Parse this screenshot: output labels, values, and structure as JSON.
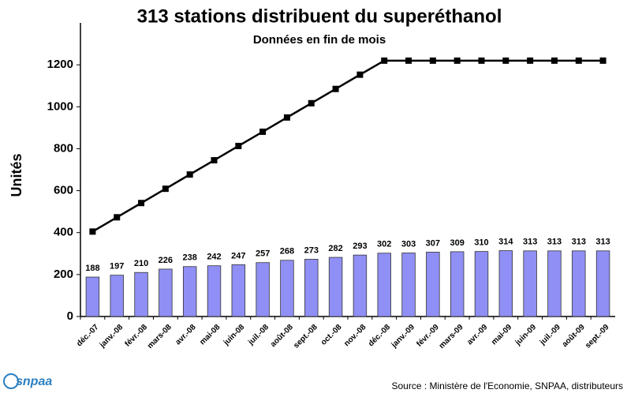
{
  "chart_data": {
    "type": "bar",
    "title": "313 stations distribuent du superéthanol",
    "subtitle": "Données en fin de mois",
    "y_label": "Unités",
    "source": "Source : Ministère de l'Economie, SNPAA, distributeurs",
    "logo": "snpaa",
    "categories": [
      "déc.-07",
      "janv.-08",
      "févr.-08",
      "mars-08",
      "avr.-08",
      "mai-08",
      "juin-08",
      "juil.-08",
      "août-08",
      "sept.-08",
      "oct.-08",
      "nov.-08",
      "déc.-08",
      "janv.-09",
      "févr.-09",
      "mars-09",
      "avr.-09",
      "mai-09",
      "juin-09",
      "juil.-09",
      "août-09",
      "sept.-09"
    ],
    "series": [
      {
        "type": "bar",
        "color": "#8f8ff5",
        "values": [
          188,
          197,
          210,
          226,
          238,
          242,
          247,
          257,
          268,
          273,
          282,
          293,
          302,
          303,
          307,
          309,
          310,
          314,
          313,
          313,
          313,
          313
        ]
      },
      {
        "type": "line",
        "color": "#000000",
        "values": [
          405,
          473,
          541,
          609,
          677,
          745,
          813,
          881,
          949,
          1017,
          1085,
          1153,
          1220,
          1220,
          1220,
          1220,
          1220,
          1220,
          1220,
          1220,
          1220,
          1220
        ]
      }
    ],
    "ylim": [
      0,
      1400
    ],
    "yticks": [
      0,
      200,
      400,
      600,
      800,
      1000,
      1200
    ],
    "grid": false
  }
}
